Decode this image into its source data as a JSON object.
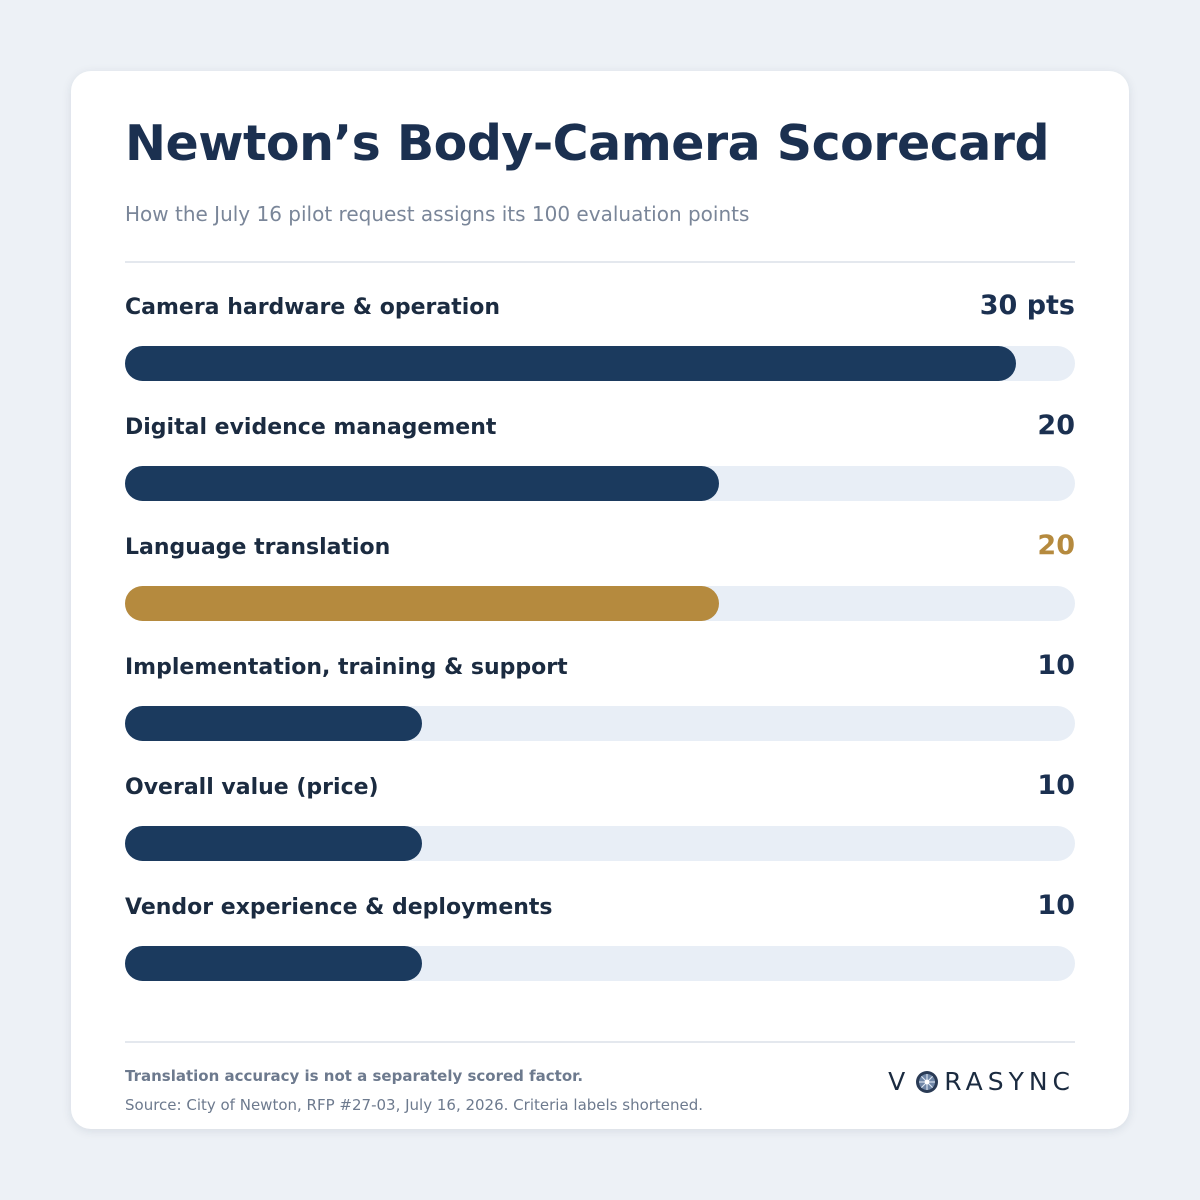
{
  "header": {
    "title": "Newton’s Body-Camera Scorecard",
    "subtitle": "How the July 16 pilot request assigns its 100 evaluation points"
  },
  "colors": {
    "primary": "#1b3a5e",
    "highlight": "#b58a3e",
    "track": "#e8eef6",
    "value_default": "#1b3050"
  },
  "chart_data": {
    "type": "bar",
    "orientation": "horizontal",
    "title": "Newton’s Body-Camera Scorecard",
    "subtitle": "How the July 16 pilot request assigns its 100 evaluation points",
    "xlim": [
      0,
      32
    ],
    "grid": false,
    "categories": [
      "Camera hardware & operation",
      "Digital evidence management",
      "Language translation",
      "Implementation, training & support",
      "Overall value (price)",
      "Vendor experience & deployments"
    ],
    "values": [
      30,
      20,
      20,
      10,
      10,
      10
    ],
    "value_labels": [
      "30 pts",
      "20",
      "20",
      "10",
      "10",
      "10"
    ],
    "highlight_index": 2
  },
  "footer": {
    "note": "Translation accuracy is not a separately scored factor.",
    "source": "Source: City of Newton, RFP #27-03, July 16, 2026. Criteria labels shortened.",
    "brand_prefix": "V",
    "brand_suffix": "RASYNC",
    "brand_icon": "compass-lens-icon"
  }
}
